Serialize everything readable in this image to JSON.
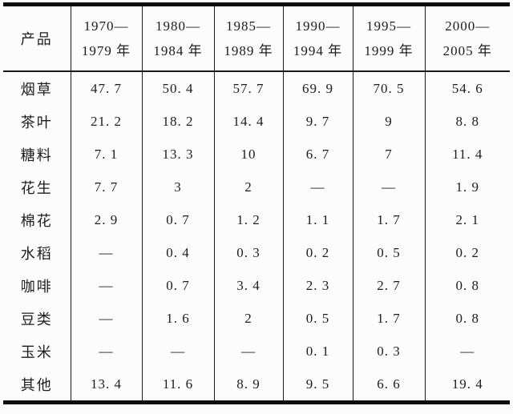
{
  "colors": {
    "thick_rule": "#0d0d0d",
    "thin_rule": "#1a1a1a",
    "text": "#1d1d1d",
    "background": "#fcfcfc"
  },
  "table": {
    "header": {
      "product_label": "产品",
      "periods": [
        {
          "line1": "1970—",
          "line2": "1979 年"
        },
        {
          "line1": "1980—",
          "line2": "1984 年"
        },
        {
          "line1": "1985—",
          "line2": "1989 年"
        },
        {
          "line1": "1990—",
          "line2": "1994 年"
        },
        {
          "line1": "1995—",
          "line2": "1999 年"
        },
        {
          "line1": "2000—",
          "line2": "2005 年"
        }
      ]
    },
    "rows": [
      {
        "product": "烟草",
        "values": [
          "47. 7",
          "50. 4",
          "57. 7",
          "69. 9",
          "70. 5",
          "54. 6"
        ]
      },
      {
        "product": "茶叶",
        "values": [
          "21. 2",
          "18. 2",
          "14. 4",
          "9. 7",
          "9",
          "8. 8"
        ]
      },
      {
        "product": "糖料",
        "values": [
          "7. 1",
          "13. 3",
          "10",
          "6. 7",
          "7",
          "11. 4"
        ]
      },
      {
        "product": "花生",
        "values": [
          "7. 7",
          "3",
          "2",
          "—",
          "—",
          "1. 9"
        ]
      },
      {
        "product": "棉花",
        "values": [
          "2. 9",
          "0. 7",
          "1. 2",
          "1. 1",
          "1. 7",
          "2. 1"
        ]
      },
      {
        "product": "水稻",
        "values": [
          "—",
          "0. 4",
          "0. 3",
          "0. 2",
          "0. 5",
          "0. 2"
        ]
      },
      {
        "product": "咖啡",
        "values": [
          "—",
          "0. 7",
          "3. 4",
          "2. 3",
          "2. 7",
          "0. 8"
        ]
      },
      {
        "product": "豆类",
        "values": [
          "—",
          "1. 6",
          "2",
          "0. 5",
          "1. 7",
          "0. 8"
        ]
      },
      {
        "product": "玉米",
        "values": [
          "—",
          "—",
          "—",
          "0. 1",
          "0. 3",
          "—"
        ]
      },
      {
        "product": "其他",
        "values": [
          "13. 4",
          "11. 6",
          "8. 9",
          "9. 5",
          "6. 6",
          "19. 4"
        ]
      }
    ]
  }
}
